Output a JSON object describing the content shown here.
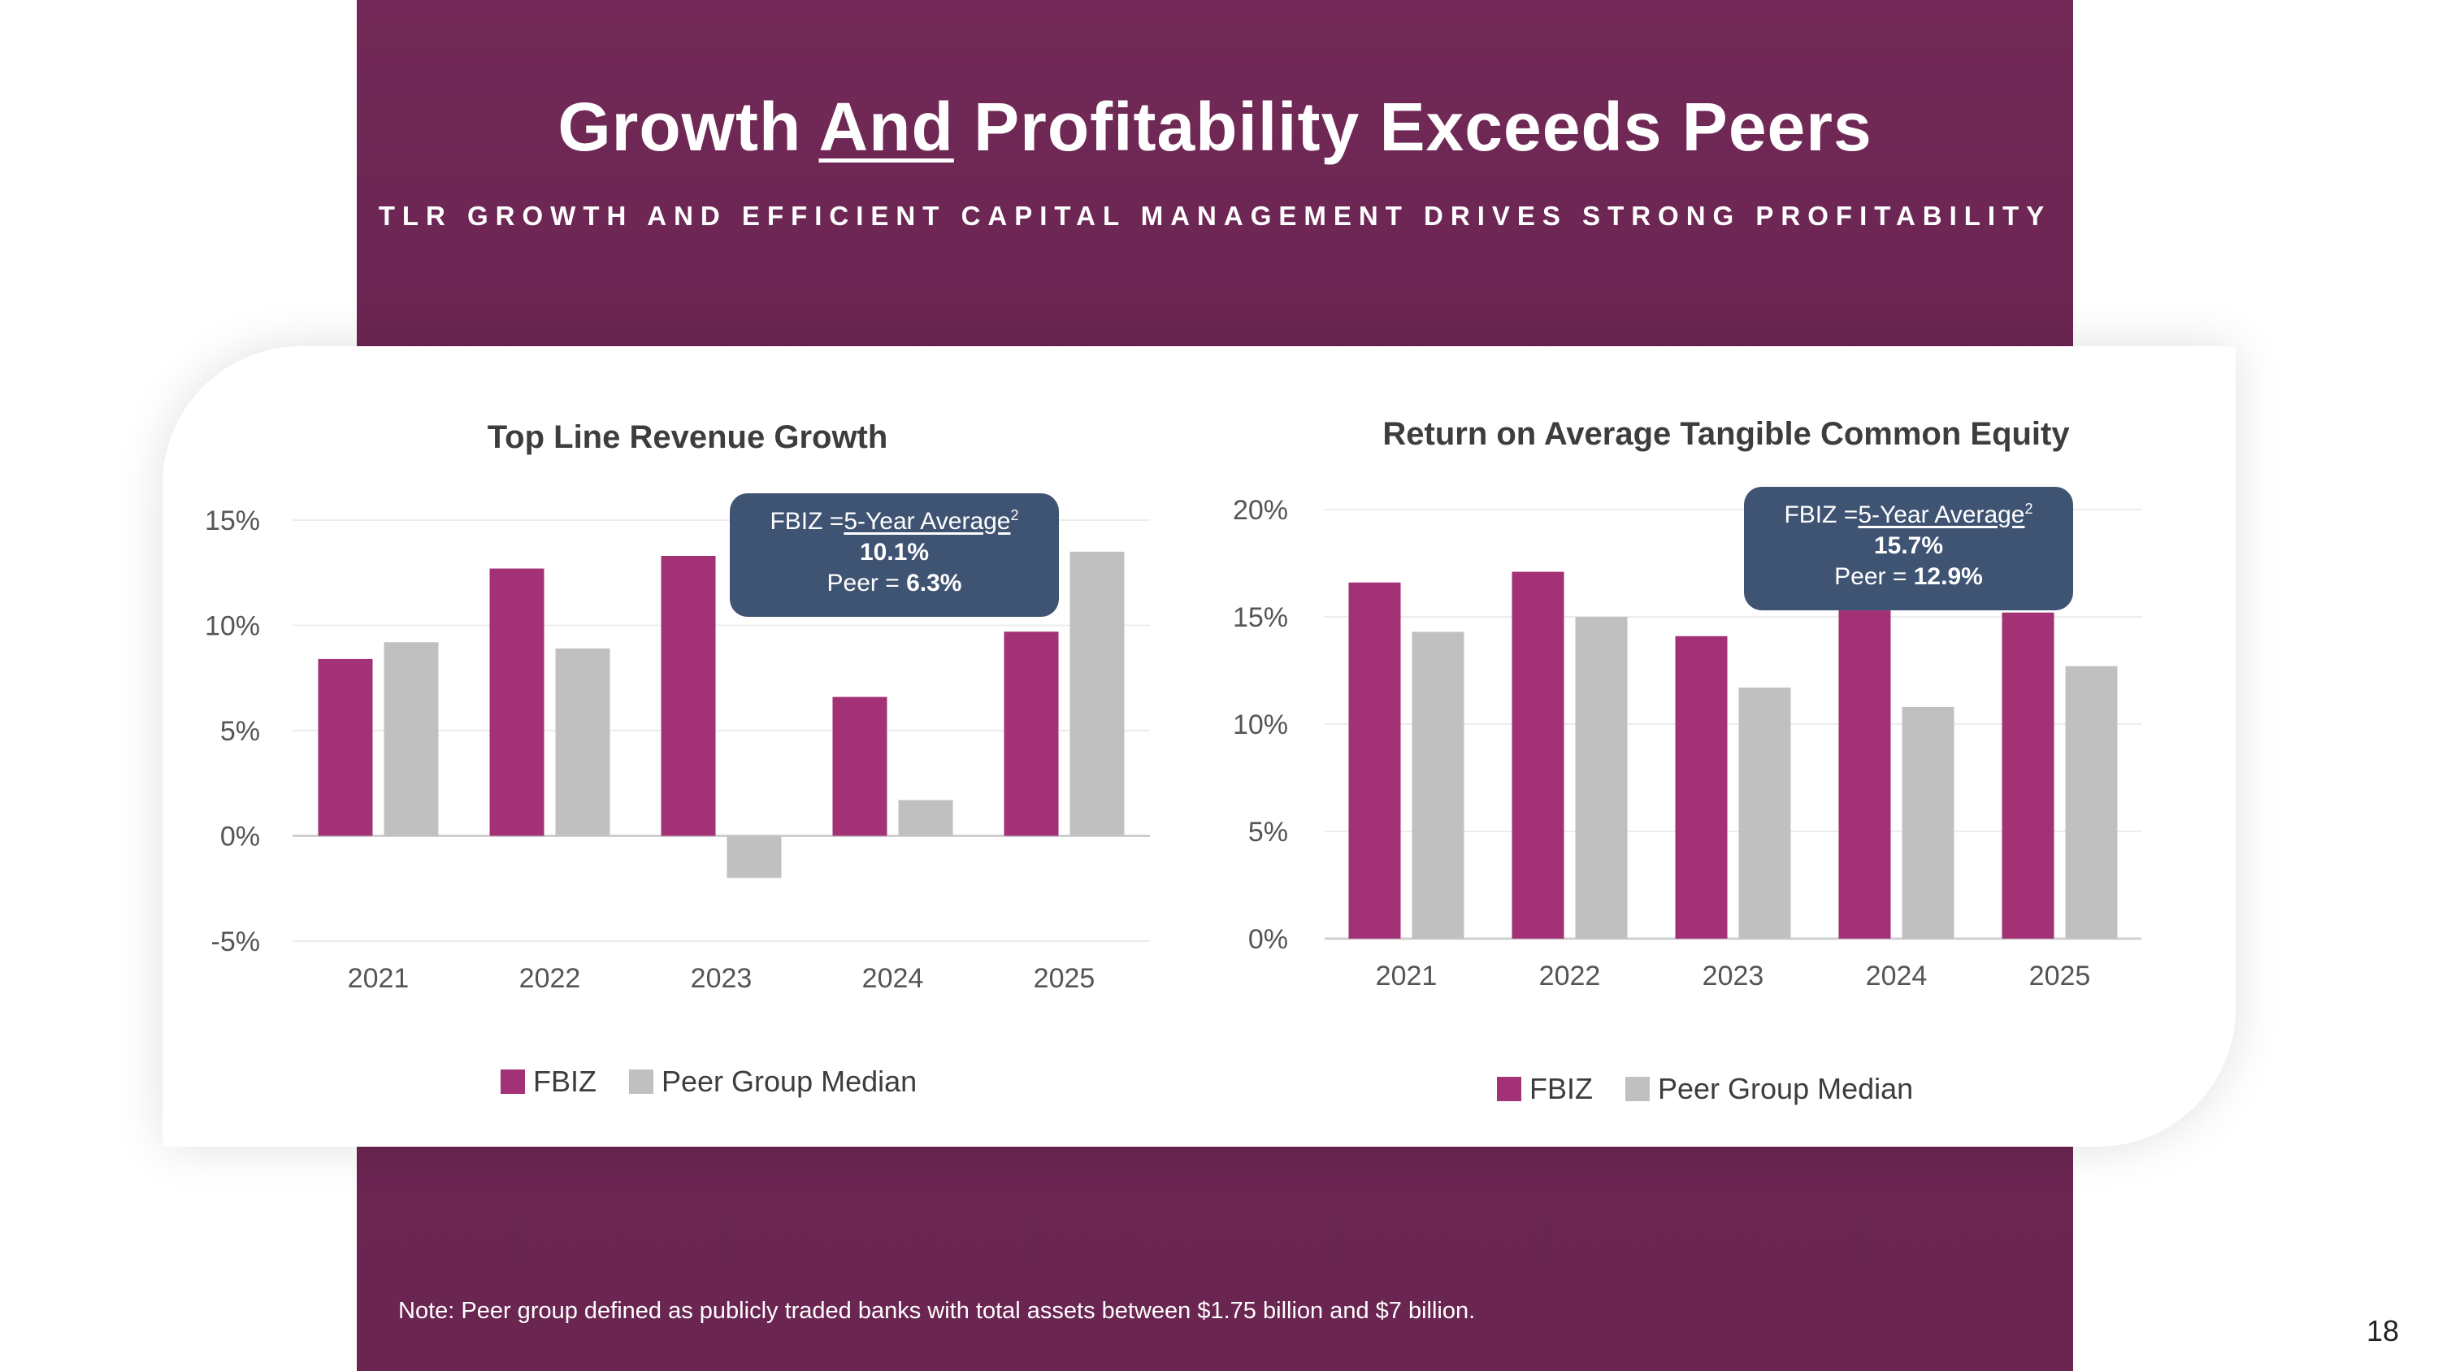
{
  "header": {
    "title_part1": "Growth ",
    "title_underlined": "And",
    "title_part2": " Profitability Exceeds Peers",
    "subtitle": "TLR GROWTH AND EFFICIENT CAPITAL MANAGEMENT DRIVES STRONG PROFITABILITY"
  },
  "colors": {
    "fbiz": "#a23175",
    "peer": "#c0c0c0",
    "band": "#6c2653",
    "callout": "#3f5373"
  },
  "chart_data": [
    {
      "type": "bar",
      "title": "Top Line Revenue Growth",
      "categories": [
        "2021",
        "2022",
        "2023",
        "2024",
        "2025"
      ],
      "series": [
        {
          "name": "FBIZ",
          "values": [
            8.4,
            12.7,
            13.3,
            6.6,
            9.7
          ]
        },
        {
          "name": "Peer Group Median",
          "values": [
            9.2,
            8.9,
            -2.0,
            1.7,
            13.5
          ]
        }
      ],
      "ylim": [
        -5,
        15
      ],
      "yticks": [
        15,
        10,
        5,
        0,
        -5
      ],
      "ytick_labels": [
        "15%",
        "10%",
        "5%",
        "0%",
        "-5%"
      ],
      "legend": [
        "FBIZ",
        "Peer Group Median"
      ],
      "annotation": {
        "head_prefix": "FBIZ =",
        "head_link": "5-Year Average",
        "sup": "2",
        "fbiz_value": "10.1%",
        "peer_label": "Peer = ",
        "peer_value": "6.3%"
      }
    },
    {
      "type": "bar",
      "title": "Return on Average Tangible Common Equity",
      "categories": [
        "2021",
        "2022",
        "2023",
        "2024",
        "2025"
      ],
      "series": [
        {
          "name": "FBIZ",
          "values": [
            16.6,
            17.1,
            14.1,
            15.3,
            15.2
          ]
        },
        {
          "name": "Peer Group Median",
          "values": [
            14.3,
            15.0,
            11.7,
            10.8,
            12.7
          ]
        }
      ],
      "ylim": [
        0,
        20
      ],
      "yticks": [
        20,
        15,
        10,
        5,
        0
      ],
      "ytick_labels": [
        "20%",
        "15%",
        "10%",
        "5%",
        "0%"
      ],
      "legend": [
        "FBIZ",
        "Peer Group Median"
      ],
      "annotation": {
        "head_prefix": "FBIZ =",
        "head_link": "5-Year Average",
        "sup": "2",
        "fbiz_value": "15.7%",
        "peer_label": "Peer = ",
        "peer_value": "12.9%"
      }
    }
  ],
  "footer": {
    "note": "Note: Peer group defined as publicly traded banks with total assets between $1.75 billion and $7 billion.",
    "page_number": "18"
  }
}
